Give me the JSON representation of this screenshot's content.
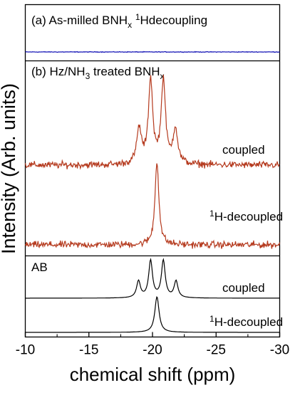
{
  "chart_data": {
    "type": "line",
    "xlabel": "chemical shift (ppm)",
    "ylabel": "Intensity (Arb. units)",
    "xlim": [
      -10,
      -30
    ],
    "x_ticks": [
      "-10",
      "-15",
      "-20",
      "-25",
      "-30"
    ],
    "x_tick_values": [
      -10,
      -15,
      -20,
      -25,
      -30
    ],
    "x_direction": "decreasing-left-to-right",
    "grid": false,
    "panels": [
      {
        "title_parts": [
          "(a) As-milled BNH",
          "x",
          " ",
          "1",
          "Hdecoupling"
        ],
        "series": [
          {
            "label": "",
            "color": "#1a1ab8",
            "kind": "noise",
            "noise_level": 0.1,
            "peaks": []
          }
        ]
      },
      {
        "title_parts": [
          "(b) Hz/NH",
          "3",
          " treated BNH",
          "x"
        ],
        "series": [
          {
            "label_parts": [
              "coupled"
            ],
            "color": "#b53a1e",
            "kind": "spectrum",
            "noise_level": 0.06,
            "peaks": [
              {
                "center": -18.95,
                "height": 0.42,
                "width": 0.22
              },
              {
                "center": -19.85,
                "height": 1.0,
                "width": 0.2
              },
              {
                "center": -20.85,
                "height": 1.0,
                "width": 0.2
              },
              {
                "center": -21.8,
                "height": 0.42,
                "width": 0.22
              }
            ]
          },
          {
            "label_parts": [
              "1",
              "H-decoupled"
            ],
            "color": "#b53a1e",
            "kind": "spectrum",
            "noise_level": 0.06,
            "peaks": [
              {
                "center": -20.35,
                "height": 1.0,
                "width": 0.18
              }
            ]
          }
        ]
      },
      {
        "title_parts": [
          "AB"
        ],
        "series": [
          {
            "label_parts": [
              "coupled"
            ],
            "color": "#000000",
            "kind": "simulated",
            "noise_level": 0,
            "peaks": [
              {
                "center": -18.9,
                "height": 0.45,
                "width": 0.18
              },
              {
                "center": -19.85,
                "height": 1.0,
                "width": 0.18
              },
              {
                "center": -20.85,
                "height": 1.0,
                "width": 0.18
              },
              {
                "center": -21.85,
                "height": 0.45,
                "width": 0.18
              }
            ]
          },
          {
            "label_parts": [
              "1",
              "H-decoupled"
            ],
            "color": "#000000",
            "kind": "simulated",
            "noise_level": 0,
            "peaks": [
              {
                "center": -20.35,
                "height": 1.0,
                "width": 0.2
              }
            ]
          }
        ]
      }
    ]
  }
}
